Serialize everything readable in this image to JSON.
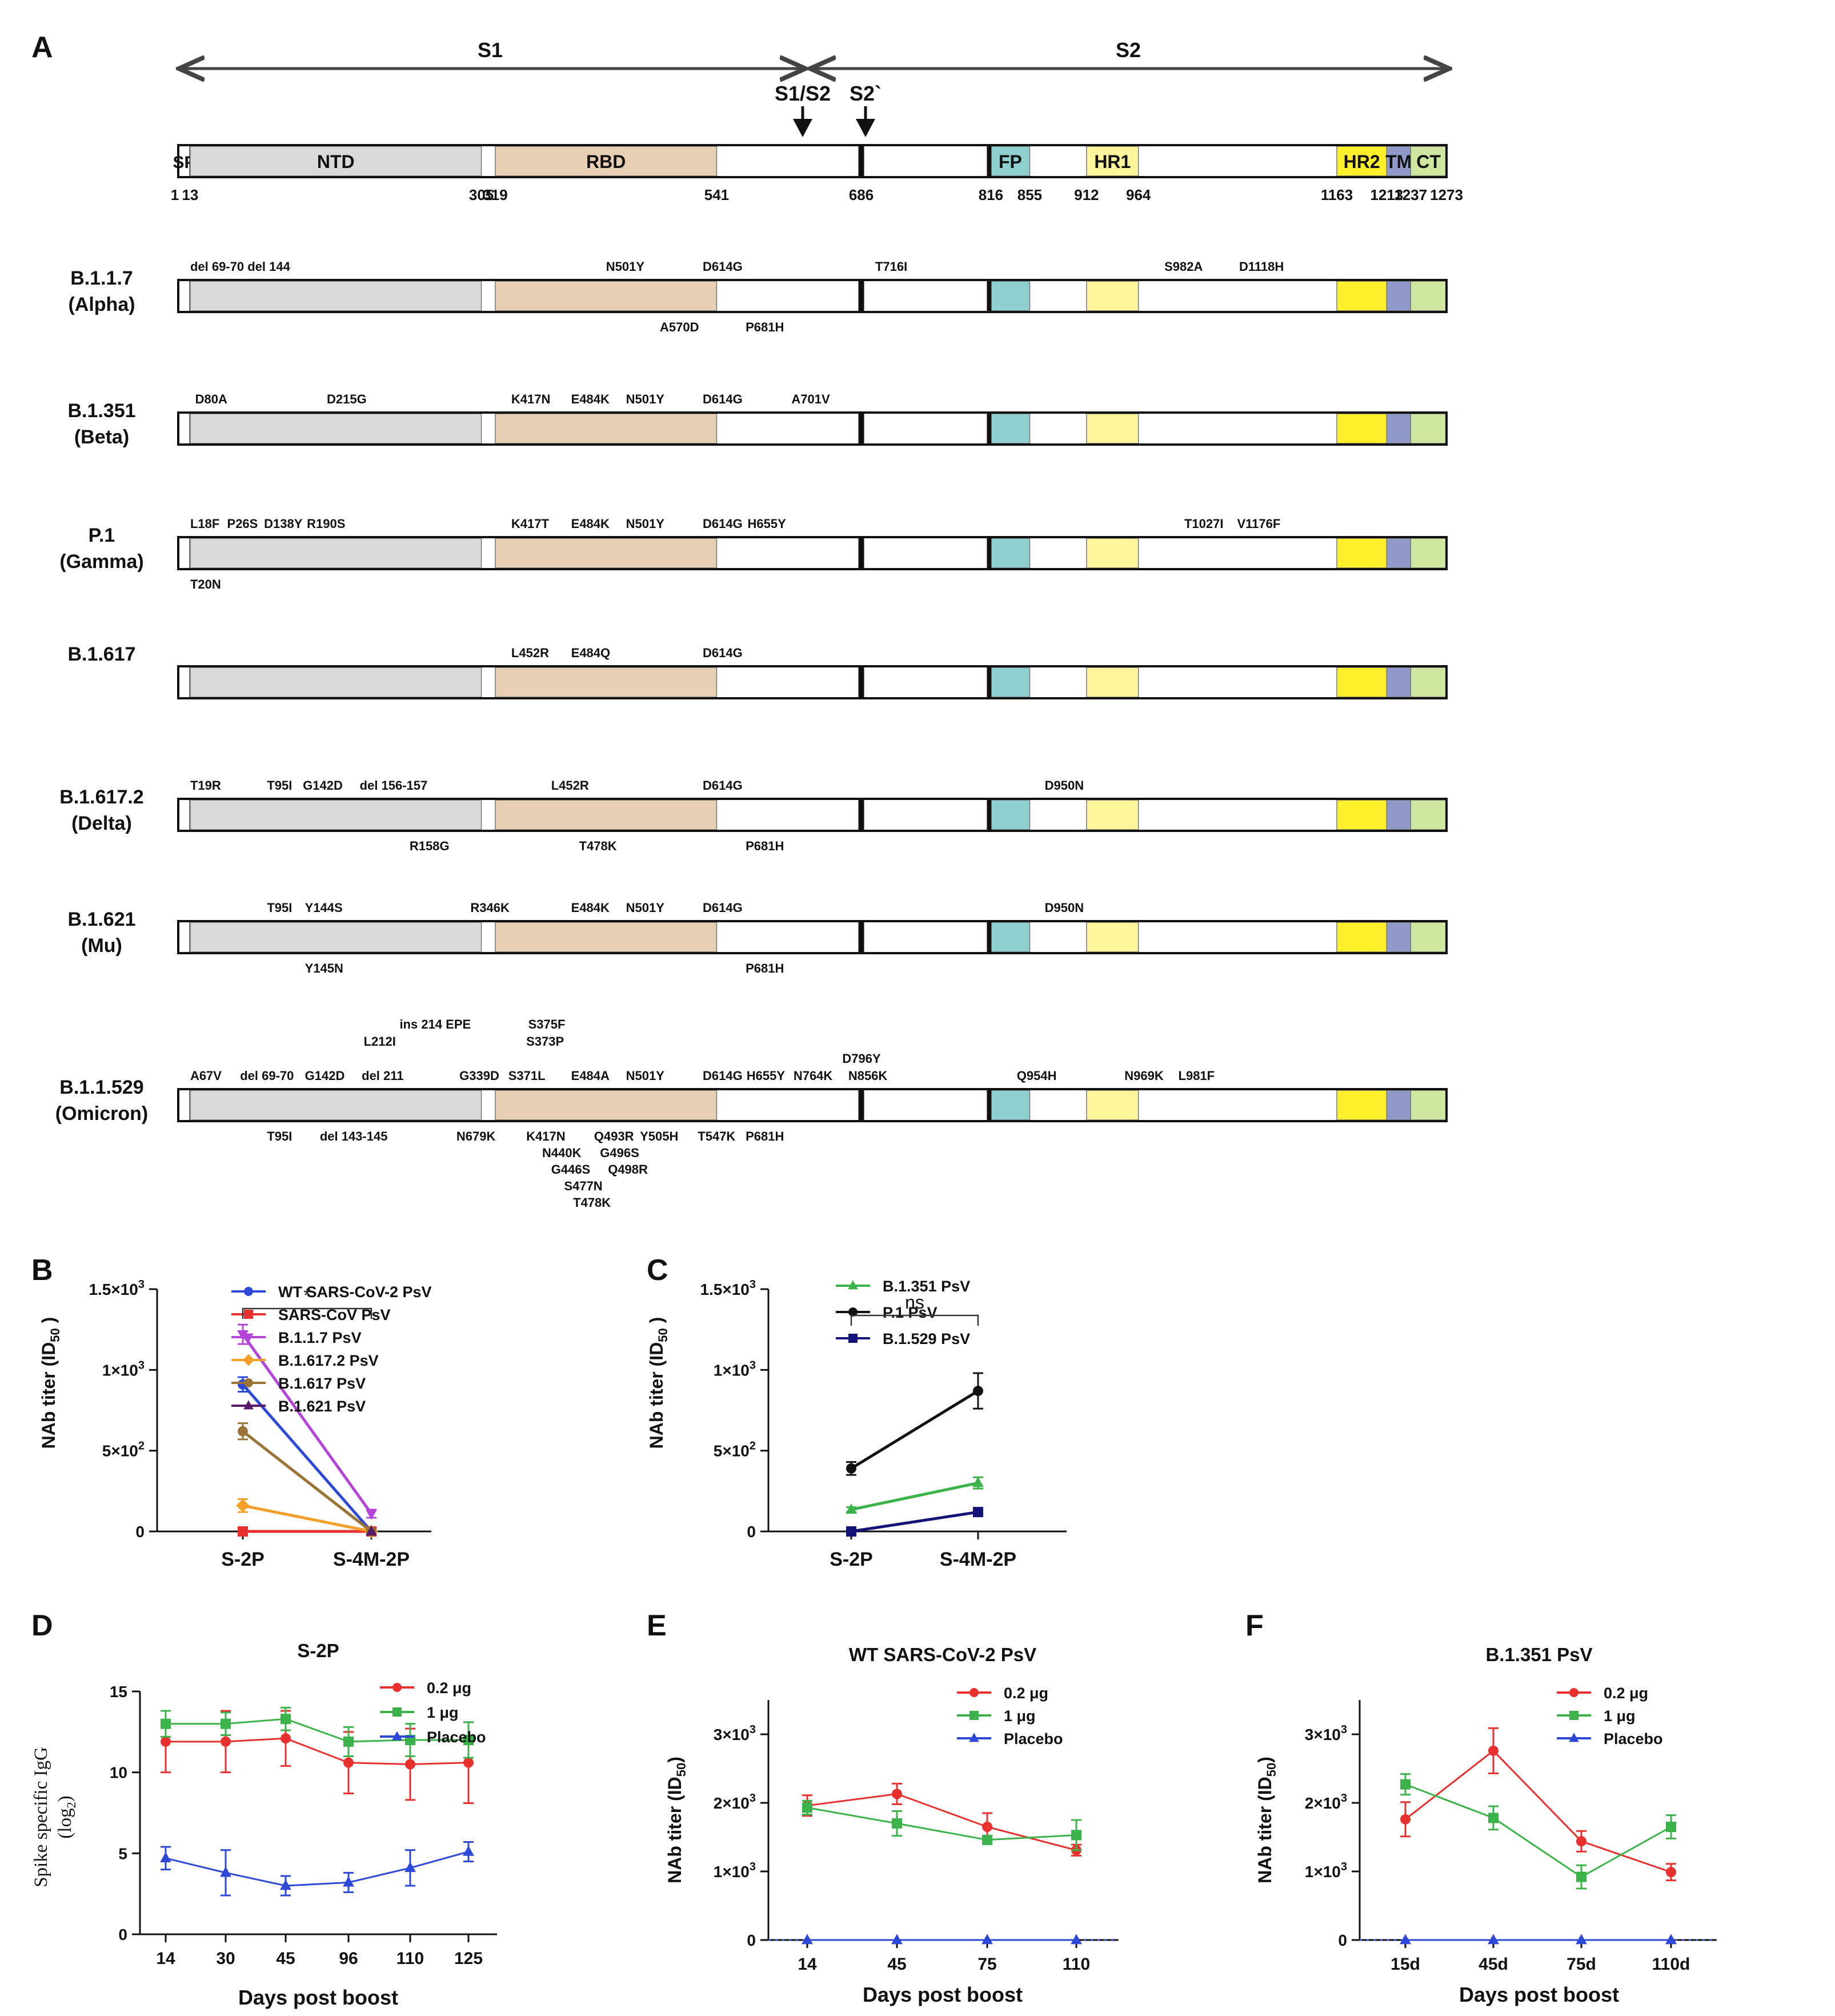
{
  "colors": {
    "SP": "#ffffff",
    "NTD": "#d9d9d9",
    "RBD": "#e6cfb2",
    "FP": "#8fcfcf",
    "HR1": "#fdf59c",
    "HR2": "#fdef2a",
    "TM": "#8f9ac8",
    "CT": "#cfe6a0",
    "red": "#e8312f",
    "green": "#3bb34a",
    "blue": "#2e49d8",
    "purple": "#b444d8",
    "orange": "#f2a02a",
    "brown": "#9a7436",
    "darkpurple": "#5a1a6a",
    "black": "#111111",
    "navy": "#13137a",
    "mutred": "#c8102e"
  },
  "panelA": {
    "letter": "A",
    "s1": "S1",
    "s2": "S2",
    "arrow1": "S1/S2",
    "arrow2": "S2`",
    "domains": [
      {
        "name": "SP",
        "start": 1,
        "end": 13,
        "key": "SP",
        "label": "SP"
      },
      {
        "name": "NTD",
        "start": 13,
        "end": 305,
        "key": "NTD",
        "label": "NTD"
      },
      {
        "name": "RBD",
        "start": 319,
        "end": 541,
        "key": "RBD",
        "label": "RBD"
      },
      {
        "name": "FP",
        "start": 816,
        "end": 855,
        "key": "FP",
        "label": "FP"
      },
      {
        "name": "HR1",
        "start": 912,
        "end": 964,
        "key": "HR1",
        "label": "HR1"
      },
      {
        "name": "HR2",
        "start": 1163,
        "end": 1213,
        "key": "HR2",
        "label": "HR2"
      },
      {
        "name": "TM",
        "start": 1213,
        "end": 1237,
        "key": "TM",
        "label": "TM"
      },
      {
        "name": "CT",
        "start": 1237,
        "end": 1273,
        "key": "CT",
        "label": "CT"
      }
    ],
    "positions": [
      "1",
      "13",
      "305",
      "319",
      "541",
      "686",
      "816",
      "855",
      "912",
      "964",
      "1163",
      "1213",
      "1237",
      "1273"
    ],
    "variants": [
      {
        "name": [
          "B.1.1.7",
          "(Alpha)"
        ],
        "above": [
          {
            "t": "del 69-70 del 144",
            "p": 13
          },
          {
            "t": "N501Y",
            "p": 430
          },
          {
            "t": "D614G",
            "p": 527
          },
          {
            "t": "T716I",
            "p": 700
          },
          {
            "t": "S982A",
            "p": 990
          },
          {
            "t": "D1118H",
            "p": 1065
          }
        ],
        "below": [
          {
            "t": "A570D",
            "p": 484
          },
          {
            "t": "P681H",
            "p": 570
          }
        ]
      },
      {
        "name": [
          "B.1.351",
          "(Beta)"
        ],
        "above": [
          {
            "t": "D80A",
            "p": 18
          },
          {
            "t": "D215G",
            "p": 150
          },
          {
            "t": "K417N",
            "p": 335
          },
          {
            "t": "E484K",
            "p": 395,
            "red": true
          },
          {
            "t": "N501Y",
            "p": 450
          },
          {
            "t": "D614G",
            "p": 527
          },
          {
            "t": "A701V",
            "p": 616
          }
        ],
        "below": []
      },
      {
        "name": [
          "P.1",
          "(Gamma)"
        ],
        "above": [
          {
            "t": "L18F",
            "p": 13
          },
          {
            "t": "P26S",
            "p": 50
          },
          {
            "t": "D138Y",
            "p": 87
          },
          {
            "t": "R190S",
            "p": 130
          },
          {
            "t": "K417T",
            "p": 335
          },
          {
            "t": "E484K",
            "p": 395,
            "red": true
          },
          {
            "t": "N501Y",
            "p": 450
          },
          {
            "t": "D614G",
            "p": 527
          },
          {
            "t": "H655Y",
            "p": 572
          },
          {
            "t": "T1027I",
            "p": 1010
          },
          {
            "t": "V1176F",
            "p": 1063
          }
        ],
        "below": [
          {
            "t": "T20N",
            "p": 13
          }
        ]
      },
      {
        "name": [
          "B.1.617"
        ],
        "above": [
          {
            "t": "L452R",
            "p": 335
          },
          {
            "t": "E484Q",
            "p": 395,
            "red": true
          },
          {
            "t": "D614G",
            "p": 527
          }
        ],
        "below": []
      },
      {
        "name": [
          "B.1.617.2",
          "(Delta)"
        ],
        "above": [
          {
            "t": "T19R",
            "p": 13
          },
          {
            "t": "T95I",
            "p": 90
          },
          {
            "t": "G142D",
            "p": 126
          },
          {
            "t": "del 156-157",
            "p": 183
          },
          {
            "t": "L452R",
            "p": 375
          },
          {
            "t": "D614G",
            "p": 527
          },
          {
            "t": "D950N",
            "p": 870
          }
        ],
        "below": [
          {
            "t": "R158G",
            "p": 233
          },
          {
            "t": "T478K",
            "p": 403
          },
          {
            "t": "P681H",
            "p": 570
          }
        ]
      },
      {
        "name": [
          "B.1.621",
          "(Mu)"
        ],
        "above": [
          {
            "t": "T95I",
            "p": 90
          },
          {
            "t": "Y144S",
            "p": 128
          },
          {
            "t": "R346K",
            "p": 294
          },
          {
            "t": "E484K",
            "p": 395,
            "red": true
          },
          {
            "t": "N501Y",
            "p": 450
          },
          {
            "t": "D614G",
            "p": 527
          },
          {
            "t": "D950N",
            "p": 870
          }
        ],
        "below": [
          {
            "t": "Y145N",
            "p": 128
          },
          {
            "t": "P681H",
            "p": 570
          }
        ]
      },
      {
        "name": [
          "B.1.1.529",
          "(Omicron)"
        ],
        "above": [
          {
            "t": "A67V",
            "p": 13
          },
          {
            "t": "del 69-70",
            "p": 63
          },
          {
            "t": "G142D",
            "p": 128
          },
          {
            "t": "del 211",
            "p": 185
          },
          {
            "t": "G339D",
            "p": 283
          },
          {
            "t": "S371L",
            "p": 332
          },
          {
            "t": "E484A",
            "p": 395,
            "red": true
          },
          {
            "t": "N501Y",
            "p": 450
          },
          {
            "t": "D614G",
            "p": 527
          },
          {
            "t": "H655Y",
            "p": 571
          },
          {
            "t": "N764K",
            "p": 618
          },
          {
            "t": "N856K",
            "p": 673
          },
          {
            "t": "Q954H",
            "p": 842
          },
          {
            "t": "N969K",
            "p": 950
          },
          {
            "t": "L981F",
            "p": 1004
          }
        ],
        "extra": [
          {
            "t": "ins 214 EPE",
            "p": 223,
            "row": -3
          },
          {
            "t": "L212I",
            "p": 187,
            "row": -2
          },
          {
            "t": "S375F",
            "p": 352,
            "row": -3
          },
          {
            "t": "S373P",
            "p": 350,
            "row": -2
          },
          {
            "t": "D796Y",
            "p": 667,
            "row": -1
          }
        ],
        "below": [
          {
            "t": "T95I",
            "p": 90
          },
          {
            "t": "del 143-145",
            "p": 143
          },
          {
            "t": "N679K",
            "p": 280
          },
          {
            "t": "K417N",
            "p": 350
          },
          {
            "t": "Q493R",
            "p": 418
          },
          {
            "t": "Y505H",
            "p": 464
          },
          {
            "t": "T547K",
            "p": 522
          },
          {
            "t": "P681H",
            "p": 570
          }
        ],
        "below2": [
          {
            "t": "N440K",
            "p": 366,
            "row": 1
          },
          {
            "t": "G496S",
            "p": 424,
            "row": 1
          },
          {
            "t": "G446S",
            "p": 375,
            "row": 2
          },
          {
            "t": "Q498R",
            "p": 432,
            "row": 2
          },
          {
            "t": "S477N",
            "p": 388,
            "row": 3
          },
          {
            "t": "T478K",
            "p": 397,
            "row": 4
          }
        ]
      }
    ]
  },
  "panelB": {
    "letter": "B",
    "ylabel": "NAb titer (ID",
    "ysub": "50",
    "ysuffix": " )",
    "significance": "*",
    "legend": [
      "WT SARS-CoV-2 PsV",
      "SARS-CoV PsV",
      "B.1.1.7 PsV",
      "B.1.617.2 PsV",
      "B.1.617 PsV",
      "B.1.621 PsV"
    ]
  },
  "panelC": {
    "letter": "C",
    "ylabel": "NAb titer (ID",
    "ysub": "50",
    "ysuffix": " )",
    "significance": "ns",
    "legend": [
      "B.1.351 PsV",
      "P.1 PsV",
      "B.1.529 PsV"
    ]
  },
  "panelD": {
    "letter": "D",
    "title": "S-2P",
    "xlabel": "Days post boost",
    "ylabel1": "Spike specific IgG",
    "ylabel2": "(log",
    "ylabel2sub": "2",
    "ylabel2end": ")",
    "legend": [
      "0.2 μg",
      "1  μg",
      "Placebo"
    ]
  },
  "panelE": {
    "letter": "E",
    "title": "WT SARS-CoV-2 PsV",
    "xlabel": "Days post boost",
    "ylabel": "NAb titer (ID",
    "ysub": "50",
    "ysuffix": ")",
    "legend": [
      "0.2 μg",
      "1 μg",
      "Placebo"
    ]
  },
  "panelF": {
    "letter": "F",
    "title": "B.1.351 PsV",
    "xlabel": "Days post boost",
    "ylabel": "NAb titer (ID",
    "ysub": "50",
    "ysuffix": ")",
    "legend": [
      "0.2 μg",
      "1 μg",
      "Placebo"
    ]
  },
  "chart_data": [
    {
      "panel": "B",
      "type": "line",
      "categories": [
        "S-2P",
        "S-4M-2P"
      ],
      "yticks": [
        "0",
        "5×10²",
        "1×10³",
        "1.5×10³"
      ],
      "ylim": [
        0,
        1500
      ],
      "series": [
        {
          "name": "WT SARS-CoV-2 PsV",
          "color": "blue",
          "marker": "circle",
          "values": [
            910,
            0
          ],
          "err": [
            45,
            5
          ]
        },
        {
          "name": "SARS-CoV PsV",
          "color": "red",
          "marker": "square",
          "values": [
            0,
            0
          ],
          "err": [
            0,
            0
          ]
        },
        {
          "name": "B.1.1.7 PsV",
          "color": "purple",
          "marker": "tri-down",
          "values": [
            1220,
            110
          ],
          "err": [
            60,
            25
          ]
        },
        {
          "name": "B.1.617.2 PsV",
          "color": "orange",
          "marker": "diamond",
          "values": [
            160,
            0
          ],
          "err": [
            40,
            5
          ]
        },
        {
          "name": "B.1.617 PsV",
          "color": "brown",
          "marker": "circle",
          "values": [
            620,
            0
          ],
          "err": [
            50,
            5
          ]
        },
        {
          "name": "B.1.621 PsV",
          "color": "darkpurple",
          "marker": "tri-up",
          "values": [
            null,
            0
          ],
          "err": [
            0,
            0
          ]
        }
      ]
    },
    {
      "panel": "C",
      "type": "line",
      "categories": [
        "S-2P",
        "S-4M-2P"
      ],
      "yticks": [
        "0",
        "5×10²",
        "1×10³",
        "1.5×10³"
      ],
      "ylim": [
        0,
        1500
      ],
      "series": [
        {
          "name": "B.1.351 PsV",
          "color": "green",
          "marker": "tri-up",
          "values": [
            135,
            300
          ],
          "err": [
            15,
            35
          ]
        },
        {
          "name": "P.1 PsV",
          "color": "black",
          "marker": "circle",
          "values": [
            390,
            870
          ],
          "err": [
            40,
            110
          ]
        },
        {
          "name": "B.1.529 PsV",
          "color": "navy",
          "marker": "square",
          "values": [
            0,
            120
          ],
          "err": [
            0,
            10
          ]
        }
      ]
    },
    {
      "panel": "D",
      "type": "line",
      "categories": [
        "14",
        "30",
        "45",
        "96",
        "110",
        "125"
      ],
      "yticks": [
        "0",
        "5",
        "10",
        "15"
      ],
      "ylim": [
        0,
        15
      ],
      "series": [
        {
          "name": "0.2 μg",
          "color": "red",
          "marker": "circle",
          "values": [
            11.9,
            11.9,
            12.1,
            10.6,
            10.5,
            10.6
          ],
          "err": [
            1.9,
            1.9,
            1.7,
            1.9,
            2.2,
            2.5
          ]
        },
        {
          "name": "1  μg",
          "color": "green",
          "marker": "square",
          "values": [
            13.0,
            13.0,
            13.3,
            11.9,
            12.0,
            12.0
          ],
          "err": [
            0.8,
            0.7,
            0.7,
            0.9,
            1.0,
            1.1
          ]
        },
        {
          "name": "Placebo",
          "color": "blue",
          "marker": "tri-up",
          "values": [
            4.7,
            3.8,
            3.0,
            3.2,
            4.1,
            5.1
          ],
          "err": [
            0.7,
            1.4,
            0.6,
            0.6,
            1.1,
            0.6
          ]
        }
      ]
    },
    {
      "panel": "E",
      "type": "line",
      "categories": [
        "14",
        "45",
        "75",
        "110"
      ],
      "yticks": [
        "0",
        "1×10³",
        "2×10³",
        "3×10³"
      ],
      "ylim": [
        0,
        3500
      ],
      "series": [
        {
          "name": "0.2 μg",
          "color": "red",
          "marker": "circle",
          "values": [
            1960,
            2130,
            1650,
            1310
          ],
          "err": [
            150,
            150,
            200,
            80
          ]
        },
        {
          "name": "1 μg",
          "color": "green",
          "marker": "square",
          "values": [
            1930,
            1700,
            1460,
            1530
          ],
          "err": [
            100,
            180,
            60,
            220
          ]
        },
        {
          "name": "Placebo",
          "color": "blue",
          "marker": "tri-up",
          "values": [
            0,
            0,
            0,
            0
          ],
          "err": [
            0,
            0,
            0,
            0
          ]
        }
      ]
    },
    {
      "panel": "F",
      "type": "line",
      "categories": [
        "15d",
        "45d",
        "75d",
        "110d"
      ],
      "yticks": [
        "0",
        "1×10³",
        "2×10³",
        "3×10³"
      ],
      "ylim": [
        0,
        3500
      ],
      "series": [
        {
          "name": "0.2 μg",
          "color": "red",
          "marker": "circle",
          "values": [
            1760,
            2760,
            1440,
            990
          ],
          "err": [
            250,
            330,
            150,
            120
          ]
        },
        {
          "name": "1 μg",
          "color": "green",
          "marker": "square",
          "values": [
            2270,
            1780,
            920,
            1650
          ],
          "err": [
            150,
            170,
            170,
            170
          ]
        },
        {
          "name": "Placebo",
          "color": "blue",
          "marker": "tri-up",
          "values": [
            0,
            0,
            0,
            0
          ],
          "err": [
            0,
            0,
            0,
            0
          ]
        }
      ]
    }
  ]
}
